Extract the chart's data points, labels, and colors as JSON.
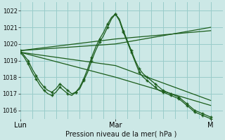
{
  "title": "Pression niveau de la mer( hPa )",
  "bg_color": "#cce8e6",
  "grid_color": "#99ccca",
  "line_color": "#1a5c1a",
  "ylim": [
    1015.5,
    1022.5
  ],
  "yticks": [
    1016,
    1017,
    1018,
    1019,
    1020,
    1021,
    1022
  ],
  "xtick_labels": [
    "Lun",
    "Mar",
    "M"
  ],
  "xtick_positions": [
    0,
    24,
    48
  ],
  "xlim": [
    0,
    51
  ],
  "lines": [
    {
      "x": [
        0,
        1,
        2,
        3,
        4,
        5,
        6,
        7,
        8,
        9,
        10,
        11,
        12,
        13,
        14,
        15,
        16,
        17,
        18,
        19,
        20,
        21,
        22,
        23,
        24,
        25,
        26,
        27,
        28,
        29,
        30,
        31,
        32,
        33,
        34,
        35,
        36,
        37,
        38,
        39,
        40,
        41,
        42,
        43,
        44,
        45,
        46,
        47,
        48
      ],
      "y": [
        1019.6,
        1019.3,
        1019.0,
        1018.5,
        1018.1,
        1017.7,
        1017.4,
        1017.2,
        1017.1,
        1017.3,
        1017.6,
        1017.4,
        1017.2,
        1017.0,
        1017.1,
        1017.3,
        1017.8,
        1018.3,
        1019.0,
        1019.6,
        1020.1,
        1020.5,
        1021.0,
        1021.5,
        1021.8,
        1021.5,
        1020.8,
        1020.2,
        1019.6,
        1019.0,
        1018.5,
        1018.2,
        1018.0,
        1017.8,
        1017.6,
        1017.4,
        1017.2,
        1017.1,
        1017.0,
        1016.9,
        1016.8,
        1016.6,
        1016.4,
        1016.2,
        1016.0,
        1015.9,
        1015.8,
        1015.7,
        1015.6
      ]
    },
    {
      "x": [
        0,
        1,
        2,
        3,
        4,
        5,
        6,
        7,
        8,
        9,
        10,
        11,
        12,
        13,
        14,
        15,
        16,
        17,
        18,
        19,
        20,
        21,
        22,
        23,
        24,
        25,
        26,
        27,
        28,
        29,
        30,
        31,
        32,
        33,
        34,
        35,
        36,
        37,
        38,
        39,
        40,
        41,
        42,
        43,
        44,
        45,
        46,
        47,
        48
      ],
      "y": [
        1019.5,
        1019.2,
        1018.8,
        1018.3,
        1017.9,
        1017.5,
        1017.2,
        1017.0,
        1016.9,
        1017.1,
        1017.4,
        1017.2,
        1017.0,
        1016.9,
        1017.1,
        1017.4,
        1017.9,
        1018.5,
        1019.2,
        1019.8,
        1020.3,
        1020.7,
        1021.2,
        1021.6,
        1021.8,
        1021.4,
        1020.7,
        1020.1,
        1019.5,
        1018.9,
        1018.3,
        1018.0,
        1017.8,
        1017.6,
        1017.4,
        1017.2,
        1017.1,
        1017.0,
        1016.9,
        1016.8,
        1016.7,
        1016.5,
        1016.3,
        1016.1,
        1015.9,
        1015.8,
        1015.7,
        1015.6,
        1015.5
      ]
    },
    {
      "x": [
        0,
        24,
        48
      ],
      "y": [
        1019.6,
        1020.3,
        1020.8
      ]
    },
    {
      "x": [
        0,
        24,
        48
      ],
      "y": [
        1019.6,
        1020.0,
        1021.0
      ]
    },
    {
      "x": [
        0,
        24,
        48
      ],
      "y": [
        1019.5,
        1018.7,
        1016.6
      ]
    },
    {
      "x": [
        0,
        24,
        48
      ],
      "y": [
        1019.5,
        1018.0,
        1016.3
      ]
    }
  ]
}
